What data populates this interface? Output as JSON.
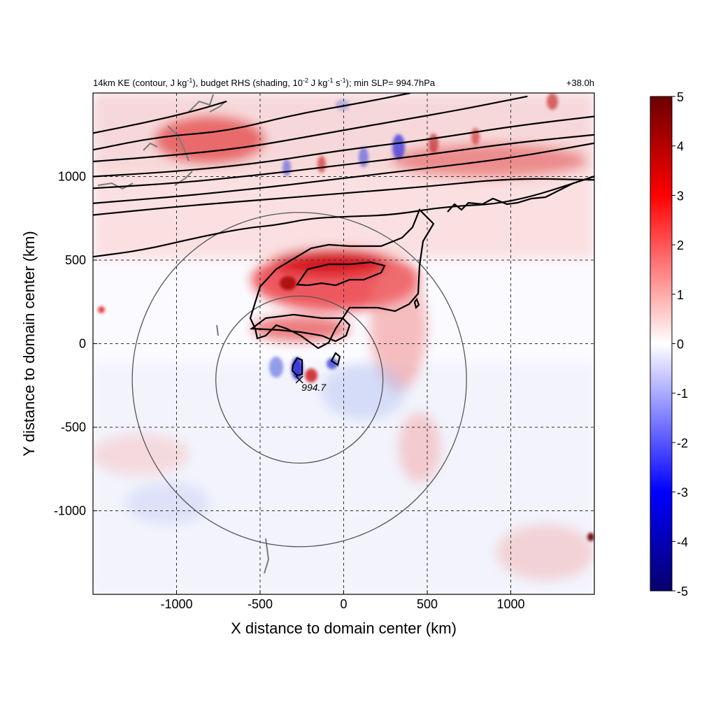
{
  "chart_data": {
    "type": "heatmap",
    "title_left": "14km KE (contour, J kg^-1), budget RHS (shading, 10^-2 J kg^-1 s^-1); min SLP= 994.7hPa",
    "title_left_parts": {
      "a": "14km KE (contour, J kg",
      "b": "-1",
      "c": "), budget RHS (shading, 10",
      "d": "-2",
      "e": " J kg",
      "f": "-1",
      "g": " s",
      "h": "-1",
      "i": "); min SLP= 994.7hPa"
    },
    "title_right": "+38.0h",
    "xlabel": "X distance to domain center (km)",
    "ylabel": "Y distance to domain center (km)",
    "xlim": [
      -1500,
      1500
    ],
    "ylim": [
      -1500,
      1500
    ],
    "xticks": [
      -1000,
      -500,
      0,
      500,
      1000
    ],
    "yticks": [
      -1000,
      -500,
      0,
      500,
      1000
    ],
    "grid": "dashed",
    "colorbar": {
      "range": [
        -5,
        5
      ],
      "ticks": [
        5,
        4,
        3,
        2,
        1,
        0,
        -1,
        -2,
        -3,
        -4,
        -5
      ],
      "colors": [
        "#08006b",
        "#0000ff",
        "#ffffff",
        "#ff0000",
        "#6b0000"
      ]
    },
    "center_marker": {
      "x": -265,
      "y": -215,
      "label": "994.7"
    },
    "range_rings": [
      {
        "cx": -265,
        "cy": -215,
        "r": 500
      },
      {
        "cx": -265,
        "cy": -215,
        "r": 1000
      }
    ],
    "contour_lines": [
      [
        [
          -1500,
          1260
        ],
        [
          -1200,
          1320
        ],
        [
          -900,
          1390
        ],
        [
          -700,
          1450
        ]
      ],
      [
        [
          -1500,
          1160
        ],
        [
          -1100,
          1240
        ],
        [
          -700,
          1270
        ],
        [
          -300,
          1370
        ],
        [
          100,
          1440
        ],
        [
          400,
          1500
        ]
      ],
      [
        [
          -1500,
          1090
        ],
        [
          -1100,
          1120
        ],
        [
          -600,
          1170
        ],
        [
          -100,
          1260
        ],
        [
          300,
          1330
        ],
        [
          700,
          1400
        ],
        [
          1100,
          1480
        ]
      ],
      [
        [
          -1500,
          1000
        ],
        [
          -1000,
          1030
        ],
        [
          -500,
          1080
        ],
        [
          0,
          1160
        ],
        [
          500,
          1220
        ],
        [
          1000,
          1300
        ],
        [
          1500,
          1360
        ]
      ],
      [
        [
          -1500,
          930
        ],
        [
          -1000,
          960
        ],
        [
          -500,
          1010
        ],
        [
          0,
          1070
        ],
        [
          500,
          1130
        ],
        [
          1000,
          1200
        ],
        [
          1500,
          1250
        ]
      ],
      [
        [
          -1500,
          840
        ],
        [
          -1000,
          880
        ],
        [
          -500,
          930
        ],
        [
          0,
          990
        ],
        [
          500,
          1050
        ],
        [
          1000,
          1110
        ],
        [
          1500,
          1200
        ]
      ],
      [
        [
          -1500,
          770
        ],
        [
          -1000,
          820
        ],
        [
          -500,
          860
        ],
        [
          0,
          900
        ],
        [
          500,
          940
        ],
        [
          1000,
          990
        ],
        [
          1500,
          980
        ]
      ],
      [
        [
          -1500,
          520
        ],
        [
          -1200,
          560
        ],
        [
          -900,
          630
        ],
        [
          -600,
          690
        ],
        [
          -400,
          710
        ],
        [
          -200,
          750
        ],
        [
          0,
          760
        ],
        [
          300,
          770
        ],
        [
          600,
          820
        ],
        [
          1000,
          840
        ],
        [
          1500,
          1000
        ]
      ]
    ]
  }
}
